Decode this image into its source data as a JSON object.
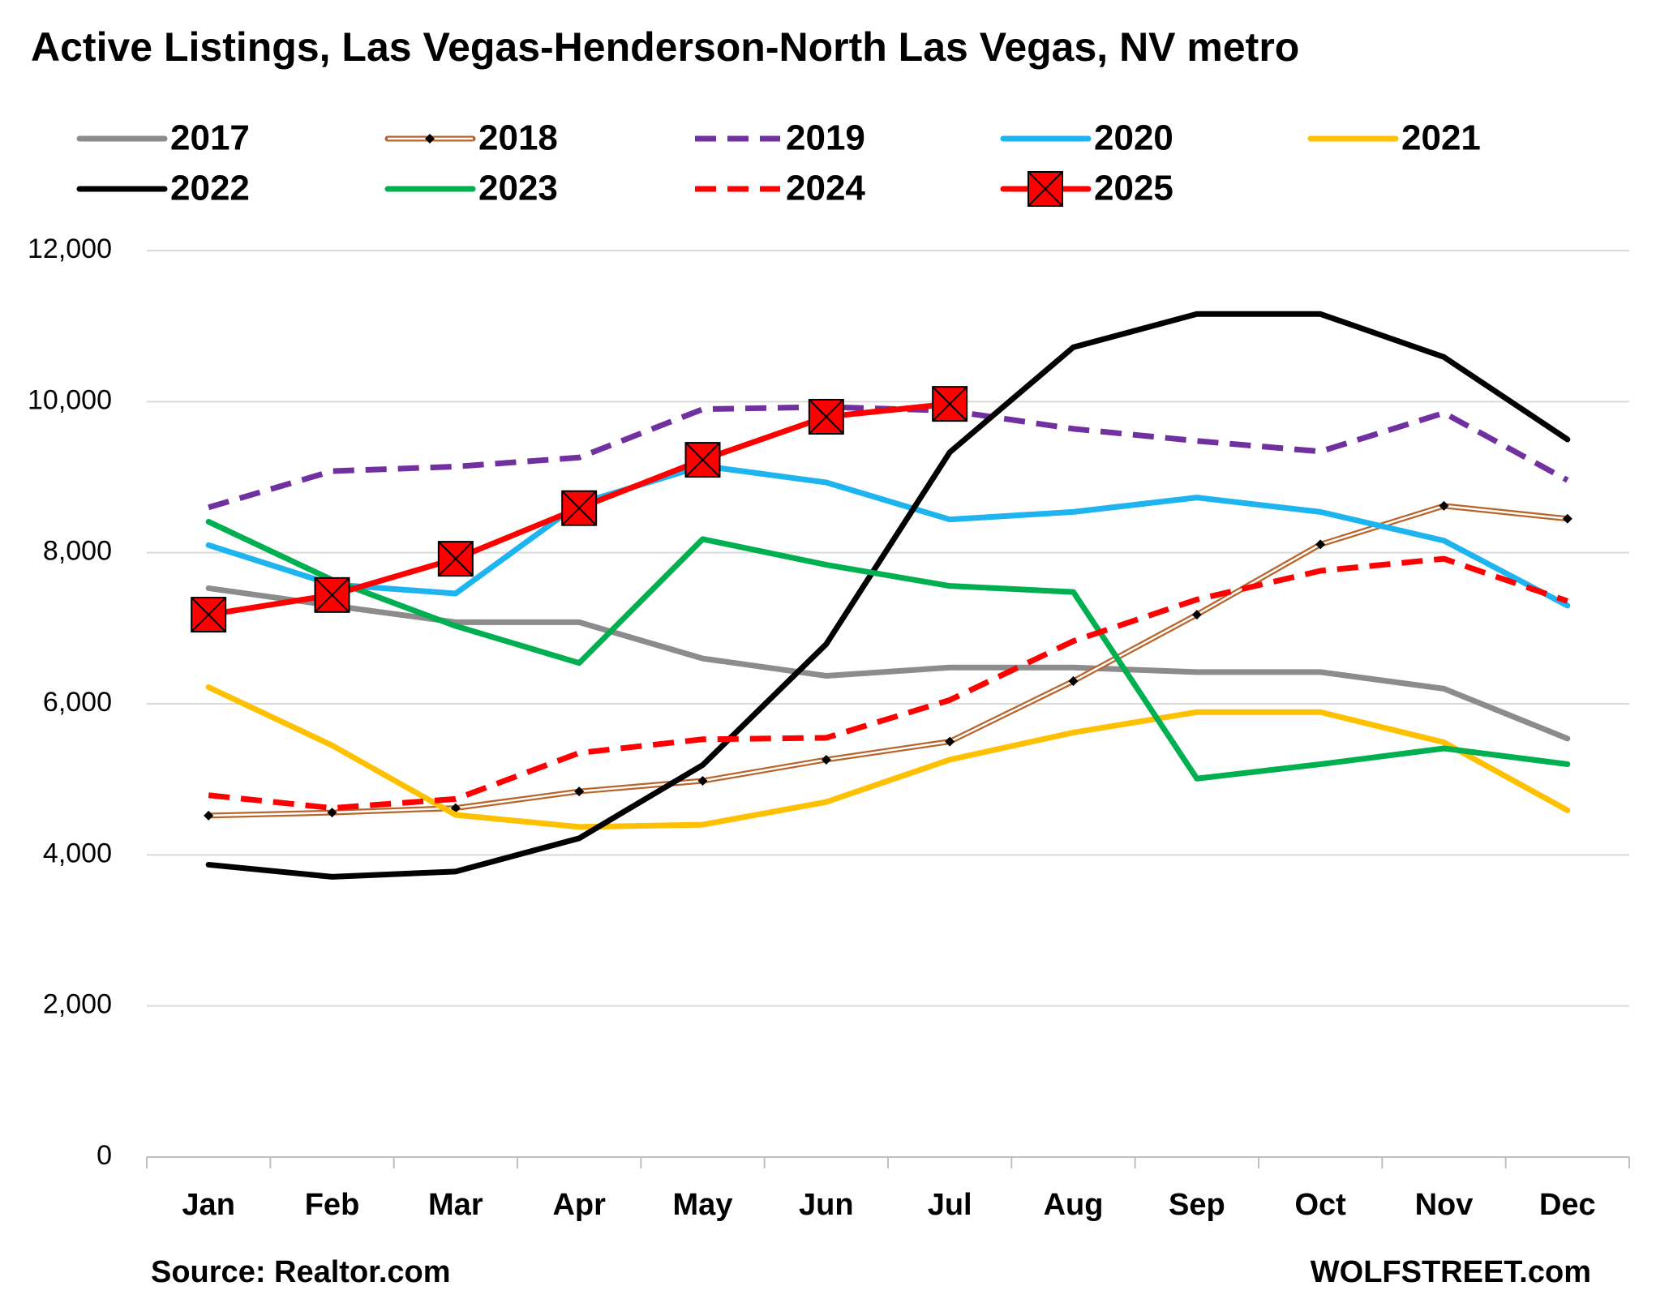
{
  "chart_data": {
    "type": "line",
    "title": "Active Listings, Las Vegas-Henderson-North Las Vegas, NV metro",
    "source": "Source: Realtor.com",
    "credit": "WOLFSTREET.com",
    "categories": [
      "Jan",
      "Feb",
      "Mar",
      "Apr",
      "May",
      "Jun",
      "Jul",
      "Aug",
      "Sep",
      "Oct",
      "Nov",
      "Dec"
    ],
    "ylim": [
      0,
      12000
    ],
    "yticks": [
      0,
      {
        "value": 2000,
        "label": "2,000"
      },
      {
        "value": 4000,
        "label": "4,000"
      },
      {
        "value": 6000,
        "label": "6,000"
      },
      {
        "value": 8000,
        "label": "8,000"
      },
      {
        "value": 10000,
        "label": "10,000"
      },
      {
        "value": 12000,
        "label": "12,000"
      }
    ],
    "grid": true,
    "series": [
      {
        "name": "2017",
        "color": "#8c8c8c",
        "values": [
          7530,
          7300,
          7080,
          7080,
          6600,
          6370,
          6480,
          6480,
          6420,
          6420,
          6200,
          5540
        ]
      },
      {
        "name": "2018",
        "color": "#b8642a",
        "double": true,
        "marker": "diamond",
        "values": [
          4520,
          4560,
          4620,
          4840,
          4980,
          5260,
          5500,
          6300,
          7180,
          8110,
          8620,
          8450
        ]
      },
      {
        "name": "2019",
        "color": "#7030a0",
        "dash": true,
        "values": [
          8600,
          9080,
          9140,
          9260,
          9900,
          9930,
          9880,
          9640,
          9480,
          9340,
          9850,
          8960
        ]
      },
      {
        "name": "2020",
        "color": "#1eb4f0",
        "values": [
          8100,
          7580,
          7460,
          8650,
          9150,
          8930,
          8440,
          8540,
          8730,
          8540,
          8160,
          7300
        ]
      },
      {
        "name": "2021",
        "color": "#ffc000",
        "values": [
          6220,
          5450,
          4530,
          4370,
          4400,
          4700,
          5260,
          5620,
          5890,
          5890,
          5490,
          4590
        ]
      },
      {
        "name": "2022",
        "color": "#000000",
        "values": [
          3870,
          3710,
          3780,
          4220,
          5190,
          6790,
          9330,
          10720,
          11160,
          11160,
          10590,
          9500
        ]
      },
      {
        "name": "2023",
        "color": "#00b050",
        "values": [
          8410,
          7640,
          7030,
          6540,
          8180,
          7840,
          7560,
          7480,
          5010,
          5200,
          5410,
          5200
        ]
      },
      {
        "name": "2024",
        "color": "#ff0000",
        "dash": true,
        "values": [
          4790,
          4620,
          4740,
          5350,
          5530,
          5550,
          6050,
          6830,
          7380,
          7760,
          7920,
          7360
        ]
      },
      {
        "name": "2025",
        "color": "#ff0000",
        "marker": "square-x",
        "values": [
          7180,
          7440,
          7920,
          8590,
          9230,
          9800,
          9970,
          null,
          null,
          null,
          null,
          null
        ]
      }
    ]
  }
}
